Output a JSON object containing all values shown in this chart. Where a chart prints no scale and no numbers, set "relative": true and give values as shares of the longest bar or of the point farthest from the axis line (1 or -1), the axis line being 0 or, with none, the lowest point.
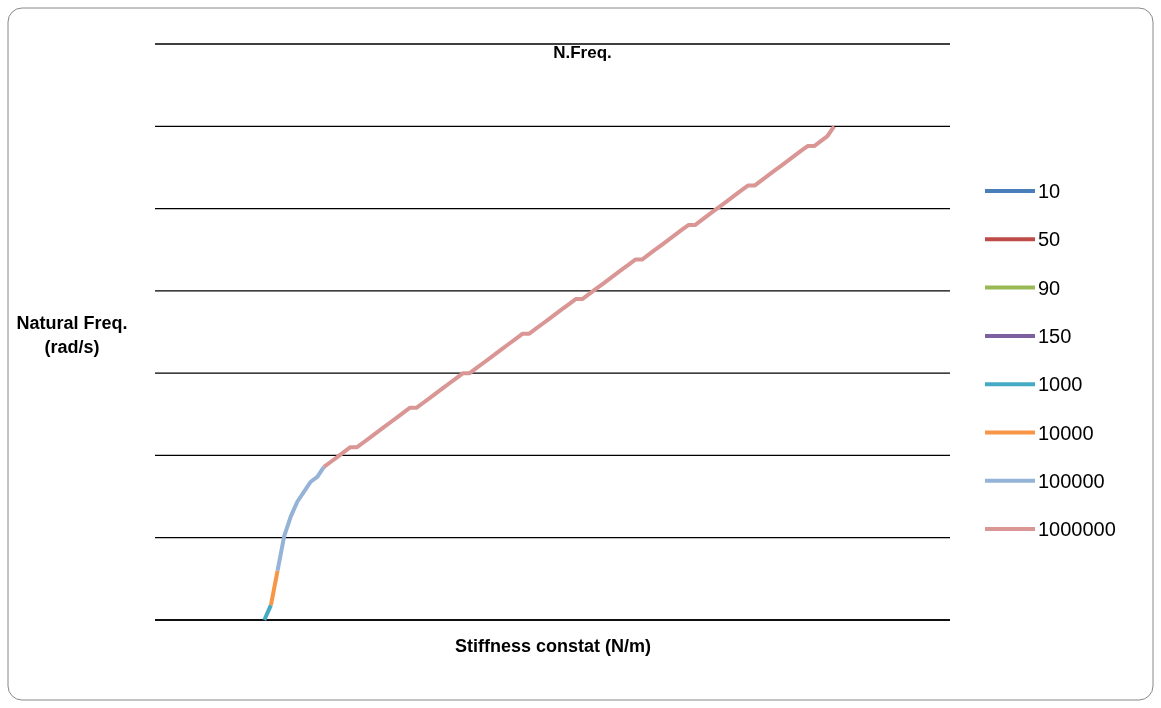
{
  "chart_data": {
    "type": "line",
    "title": "N.Freq.",
    "xlabel": "Stiffness constat (N/m)",
    "ylabel": "Natural Freq. (rad/s)",
    "relative": true,
    "grid": "y",
    "legend": "right",
    "line_style": "solid",
    "marker": "none",
    "categories": [
      null,
      null,
      null,
      null,
      null,
      null,
      null,
      null,
      null,
      null,
      null,
      null,
      null,
      null,
      null,
      null,
      null,
      null,
      null,
      null,
      null,
      null,
      null,
      null,
      null,
      null,
      null,
      null,
      null,
      null,
      null,
      null,
      null,
      null,
      null,
      null,
      null,
      null,
      null,
      null,
      null,
      null,
      null,
      null,
      null,
      null,
      null,
      null,
      null,
      null,
      null,
      null,
      null,
      null,
      null,
      null,
      null,
      null,
      null,
      null,
      null,
      null,
      null,
      null,
      null,
      null,
      null,
      null,
      null,
      null,
      null,
      null,
      null,
      null,
      null,
      null,
      null,
      null,
      null,
      null,
      null,
      null,
      null,
      null,
      null,
      null,
      null,
      null,
      null,
      null,
      null,
      null,
      null,
      null,
      null,
      null,
      null,
      null,
      null,
      null,
      null,
      null,
      null,
      null,
      null,
      null,
      null,
      null,
      null,
      null,
      null,
      null,
      null,
      null,
      null,
      null,
      null,
      null,
      null,
      null
    ],
    "series": [
      {
        "name": "10",
        "color": "#4a7ebb",
        "values": [
          null,
          null,
          null,
          null,
          null,
          null,
          null,
          null,
          null,
          null,
          null,
          null,
          null,
          null,
          null,
          null,
          null,
          null,
          null,
          null,
          null,
          null,
          null,
          null,
          null,
          null,
          null,
          null,
          null,
          null,
          null,
          null,
          null,
          null,
          null,
          null,
          null,
          null,
          null,
          null,
          null,
          null,
          null,
          null,
          null,
          null,
          null,
          null,
          null,
          null,
          null,
          null,
          null,
          null,
          null,
          null,
          null,
          null,
          null,
          null,
          null,
          null,
          null,
          null,
          null,
          null,
          null,
          null,
          null,
          null,
          null,
          null,
          null,
          null,
          null,
          null,
          null,
          null,
          null,
          null,
          null,
          null,
          null,
          null,
          null,
          null,
          null,
          null,
          null,
          null,
          null,
          null,
          null,
          null,
          null,
          null,
          null,
          null,
          null,
          null,
          null,
          null,
          null,
          null,
          null,
          null,
          null,
          null,
          null,
          null,
          null,
          null,
          null,
          null,
          null,
          null,
          null,
          null,
          null,
          null
        ]
      },
      {
        "name": "50",
        "color": "#be4b48",
        "values": [
          null,
          null,
          null,
          null,
          null,
          null,
          null,
          null,
          null,
          null,
          null,
          null,
          null,
          null,
          null,
          null,
          null,
          null,
          null,
          null,
          null,
          null,
          null,
          null,
          null,
          null,
          null,
          null,
          null,
          null,
          null,
          null,
          null,
          null,
          null,
          null,
          null,
          null,
          null,
          null,
          null,
          null,
          null,
          null,
          null,
          null,
          null,
          null,
          null,
          null,
          null,
          null,
          null,
          null,
          null,
          null,
          null,
          null,
          null,
          null,
          null,
          null,
          null,
          null,
          null,
          null,
          null,
          null,
          null,
          null,
          null,
          null,
          null,
          null,
          null,
          null,
          null,
          null,
          null,
          null,
          null,
          null,
          null,
          null,
          null,
          null,
          null,
          null,
          null,
          null,
          null,
          null,
          null,
          null,
          null,
          null,
          null,
          null,
          null,
          null,
          null,
          null,
          null,
          null,
          null,
          null,
          null,
          null,
          null,
          null,
          null,
          null,
          null,
          null,
          null,
          null,
          null,
          null,
          null,
          null
        ]
      },
      {
        "name": "90",
        "color": "#98b954",
        "values": [
          null,
          null,
          null,
          null,
          null,
          null,
          null,
          null,
          null,
          null,
          null,
          null,
          null,
          null,
          null,
          null,
          null,
          null,
          null,
          null,
          null,
          null,
          null,
          null,
          null,
          null,
          null,
          null,
          null,
          null,
          null,
          null,
          null,
          null,
          null,
          null,
          null,
          null,
          null,
          null,
          null,
          null,
          null,
          null,
          null,
          null,
          null,
          null,
          null,
          null,
          null,
          null,
          null,
          null,
          null,
          null,
          null,
          null,
          null,
          null,
          null,
          null,
          null,
          null,
          null,
          null,
          null,
          null,
          null,
          null,
          null,
          null,
          null,
          null,
          null,
          null,
          null,
          null,
          null,
          null,
          null,
          null,
          null,
          null,
          null,
          null,
          null,
          null,
          null,
          null,
          null,
          null,
          null,
          null,
          null,
          null,
          null,
          null,
          null,
          null,
          null,
          null,
          null,
          null,
          null,
          null,
          null,
          null,
          null,
          null,
          null,
          null,
          null,
          null,
          null,
          null,
          null,
          null,
          null,
          null
        ]
      },
      {
        "name": "150",
        "color": "#7d60a0",
        "values": [
          null,
          null,
          null,
          null,
          null,
          null,
          null,
          null,
          null,
          null,
          null,
          null,
          null,
          null,
          null,
          null,
          null,
          null,
          null,
          null,
          null,
          null,
          null,
          null,
          null,
          null,
          null,
          null,
          null,
          null,
          null,
          null,
          null,
          null,
          null,
          null,
          null,
          null,
          null,
          null,
          null,
          null,
          null,
          null,
          null,
          null,
          null,
          null,
          null,
          null,
          null,
          null,
          null,
          null,
          null,
          null,
          null,
          null,
          null,
          null,
          null,
          null,
          null,
          null,
          null,
          null,
          null,
          null,
          null,
          null,
          null,
          null,
          null,
          null,
          null,
          null,
          null,
          null,
          null,
          null,
          null,
          null,
          null,
          null,
          null,
          null,
          null,
          null,
          null,
          null,
          null,
          null,
          null,
          null,
          null,
          null,
          null,
          null,
          null,
          null,
          null,
          null,
          null,
          null,
          null,
          null,
          null,
          null,
          null,
          null,
          null,
          null,
          null,
          null,
          null,
          null,
          null,
          null,
          null,
          null
        ]
      },
      {
        "name": "1000",
        "color": "#46aac5",
        "values": [
          null,
          null,
          null,
          null,
          null,
          null,
          null,
          null,
          null,
          null,
          null,
          null,
          null,
          null,
          null,
          null,
          0,
          0.03,
          null,
          null,
          null,
          null,
          null,
          null,
          null,
          null,
          null,
          null,
          null,
          null,
          null,
          null,
          null,
          null,
          null,
          null,
          null,
          null,
          null,
          null,
          null,
          null,
          null,
          null,
          null,
          null,
          null,
          null,
          null,
          null,
          null,
          null,
          null,
          null,
          null,
          null,
          null,
          null,
          null,
          null,
          null,
          null,
          null,
          null,
          null,
          null,
          null,
          null,
          null,
          null,
          null,
          null,
          null,
          null,
          null,
          null,
          null,
          null,
          null,
          null,
          null,
          null,
          null,
          null,
          null,
          null,
          null,
          null,
          null,
          null,
          null,
          null,
          null,
          null,
          null,
          null,
          null,
          null,
          null,
          null,
          null,
          null,
          null,
          null,
          null,
          null,
          null,
          null,
          null,
          null,
          null,
          null,
          null,
          null,
          null,
          null,
          null,
          null,
          null,
          null
        ]
      },
      {
        "name": "10000",
        "color": "#f79646",
        "values": [
          null,
          null,
          null,
          null,
          null,
          null,
          null,
          null,
          null,
          null,
          null,
          null,
          null,
          null,
          null,
          null,
          null,
          0.03,
          0.1,
          null,
          null,
          null,
          null,
          null,
          null,
          null,
          null,
          null,
          null,
          null,
          null,
          null,
          null,
          null,
          null,
          null,
          null,
          null,
          null,
          null,
          null,
          null,
          null,
          null,
          null,
          null,
          null,
          null,
          null,
          null,
          null,
          null,
          null,
          null,
          null,
          null,
          null,
          null,
          null,
          null,
          null,
          null,
          null,
          null,
          null,
          null,
          null,
          null,
          null,
          null,
          null,
          null,
          null,
          null,
          null,
          null,
          null,
          null,
          null,
          null,
          null,
          null,
          null,
          null,
          null,
          null,
          null,
          null,
          null,
          null,
          null,
          null,
          null,
          null,
          null,
          null,
          null,
          null,
          null,
          null,
          null,
          null,
          null,
          null,
          null,
          null,
          null,
          null,
          null,
          null,
          null,
          null,
          null,
          null,
          null,
          null,
          null,
          null,
          null,
          null
        ]
      },
      {
        "name": "100000",
        "color": "#94b3d6",
        "values": [
          null,
          null,
          null,
          null,
          null,
          null,
          null,
          null,
          null,
          null,
          null,
          null,
          null,
          null,
          null,
          null,
          null,
          null,
          0.1,
          0.17,
          0.21,
          0.24,
          0.26,
          0.28,
          0.29,
          0.31,
          null,
          null,
          null,
          null,
          null,
          null,
          null,
          null,
          null,
          null,
          null,
          null,
          null,
          null,
          null,
          null,
          null,
          null,
          null,
          null,
          null,
          null,
          null,
          null,
          null,
          null,
          null,
          null,
          null,
          null,
          null,
          null,
          null,
          null,
          null,
          null,
          null,
          null,
          null,
          null,
          null,
          null,
          null,
          null,
          null,
          null,
          null,
          null,
          null,
          null,
          null,
          null,
          null,
          null,
          null,
          null,
          null,
          null,
          null,
          null,
          null,
          null,
          null,
          null,
          null,
          null,
          null,
          null,
          null,
          null,
          null,
          null,
          null,
          null,
          null,
          null,
          null,
          null,
          null,
          null,
          null,
          null,
          null,
          null,
          null,
          null,
          null,
          null,
          null,
          null,
          null,
          null,
          null,
          null
        ]
      },
      {
        "name": "1000000",
        "color": "#d99694",
        "values": [
          null,
          null,
          null,
          null,
          null,
          null,
          null,
          null,
          null,
          null,
          null,
          null,
          null,
          null,
          null,
          null,
          null,
          null,
          null,
          null,
          null,
          null,
          null,
          null,
          null,
          0.31,
          0.32,
          0.33,
          0.34,
          0.35,
          0.35,
          0.36,
          0.37,
          0.38,
          0.39,
          0.4,
          0.41,
          0.42,
          0.43,
          0.43,
          0.44,
          0.45,
          0.46,
          0.47,
          0.48,
          0.49,
          0.5,
          0.5,
          0.51,
          0.52,
          0.53,
          0.54,
          0.55,
          0.56,
          0.57,
          0.58,
          0.58,
          0.59,
          0.6,
          0.61,
          0.62,
          0.63,
          0.64,
          0.65,
          0.65,
          0.66,
          0.67,
          0.68,
          0.69,
          0.7,
          0.71,
          0.72,
          0.73,
          0.73,
          0.74,
          0.75,
          0.76,
          0.77,
          0.78,
          0.79,
          0.8,
          0.8,
          0.81,
          0.82,
          0.83,
          0.84,
          0.85,
          0.86,
          0.87,
          0.88,
          0.88,
          0.89,
          0.9,
          0.91,
          0.92,
          0.93,
          0.94,
          0.95,
          0.96,
          0.96,
          0.97,
          0.98,
          1,
          null,
          null,
          null,
          null,
          null,
          null,
          null,
          null,
          null,
          null,
          null,
          null,
          null,
          null,
          null,
          null,
          null
        ]
      }
    ]
  }
}
